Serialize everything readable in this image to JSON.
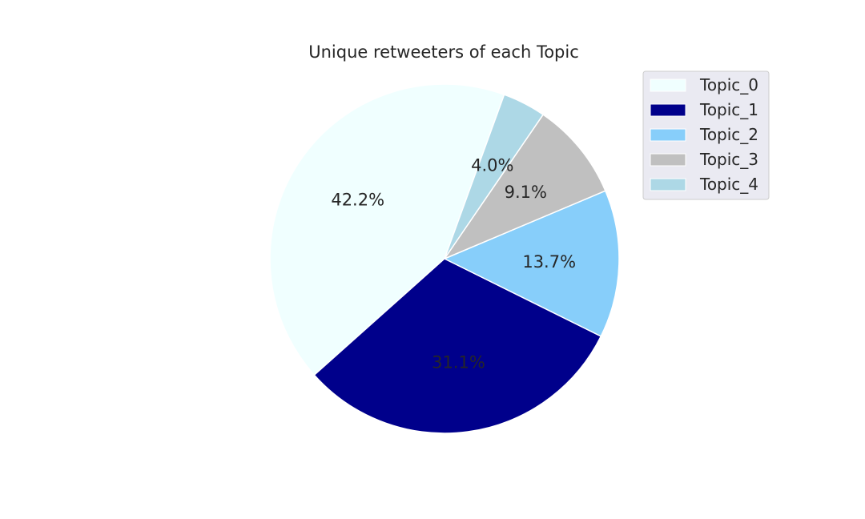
{
  "chart_data": {
    "type": "pie",
    "title": "Unique retweeters of each Topic",
    "categories": [
      "Topic_0",
      "Topic_1",
      "Topic_2",
      "Topic_3",
      "Topic_4"
    ],
    "values": [
      42.2,
      31.1,
      13.7,
      9.1,
      4.0
    ],
    "value_labels": [
      "42.2%",
      "31.1%",
      "13.7%",
      "9.1%",
      "4.0%"
    ],
    "colors": [
      "#f0ffff",
      "#00008b",
      "#87cefa",
      "#c0c0c0",
      "#add8e6"
    ],
    "label_colors": [
      "#262626",
      "#262626",
      "#262626",
      "#262626",
      "#262626"
    ],
    "start_angle_deg": 70,
    "direction": "counterclockwise",
    "legend_placement": "top-right",
    "grid": false
  }
}
